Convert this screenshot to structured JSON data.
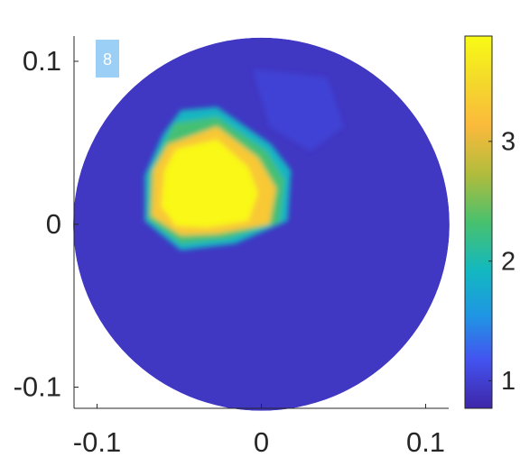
{
  "chart_data": {
    "type": "heatmap",
    "annotation": "8",
    "xlim": [
      -0.114,
      0.114
    ],
    "ylim": [
      -0.113,
      0.1155
    ],
    "xticks": [
      -0.1,
      0,
      0.1
    ],
    "yticks": [
      -0.1,
      0,
      0.1
    ],
    "clim": [
      0.77,
      3.88
    ],
    "cticks": [
      1,
      2,
      3
    ],
    "colormap": "parula",
    "disk": {
      "center": [
        0,
        0
      ],
      "radius": 0.1145,
      "value": 0.92
    },
    "regions": [
      {
        "value": 1.02,
        "polygon": [
          [
            -0.005,
            0.095
          ],
          [
            0.04,
            0.09
          ],
          [
            0.05,
            0.06
          ],
          [
            0.03,
            0.045
          ],
          [
            0.005,
            0.06
          ]
        ]
      },
      {
        "value": 1.9,
        "polygon": [
          [
            -0.049,
            0.07
          ],
          [
            -0.027,
            0.072
          ],
          [
            0.006,
            0.049
          ],
          [
            0.018,
            0.033
          ],
          [
            0.016,
            0.002
          ],
          [
            -0.016,
            -0.012
          ],
          [
            -0.049,
            -0.016
          ],
          [
            -0.071,
            0.002
          ],
          [
            -0.071,
            0.03
          ],
          [
            -0.06,
            0.055
          ]
        ]
      },
      {
        "value": 2.3,
        "polygon": [
          [
            -0.053,
            0.062
          ],
          [
            -0.027,
            0.066
          ],
          [
            0.003,
            0.045
          ],
          [
            0.014,
            0.027
          ],
          [
            0.011,
            0.001
          ],
          [
            -0.021,
            -0.009
          ],
          [
            -0.049,
            -0.012
          ],
          [
            -0.069,
            0.003
          ],
          [
            -0.068,
            0.031
          ],
          [
            -0.058,
            0.052
          ]
        ]
      },
      {
        "value": 3.3,
        "polygon": [
          [
            -0.057,
            0.049
          ],
          [
            -0.027,
            0.06
          ],
          [
            -0.002,
            0.041
          ],
          [
            0.009,
            0.022
          ],
          [
            0.005,
            0.0
          ],
          [
            -0.027,
            -0.006
          ],
          [
            -0.049,
            -0.007
          ],
          [
            -0.067,
            0.005
          ],
          [
            -0.066,
            0.033
          ]
        ]
      },
      {
        "value": 3.85,
        "polygon": [
          [
            -0.052,
            0.046
          ],
          [
            -0.027,
            0.052
          ],
          [
            -0.008,
            0.035
          ],
          [
            -0.002,
            0.019
          ],
          [
            -0.008,
            0.002
          ],
          [
            -0.033,
            -0.002
          ],
          [
            -0.052,
            -0.001
          ],
          [
            -0.061,
            0.011
          ],
          [
            -0.059,
            0.033
          ]
        ]
      }
    ]
  }
}
